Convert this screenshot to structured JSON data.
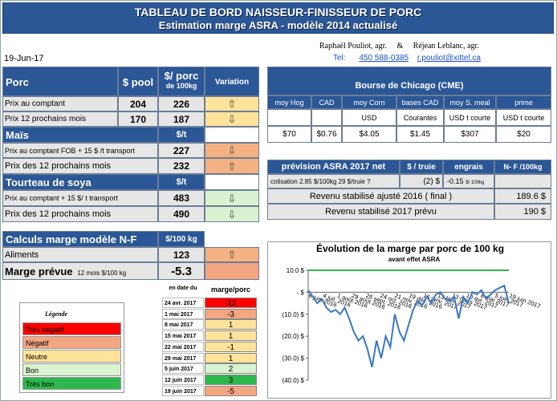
{
  "header": {
    "title": "TABLEAU DE BORD NAISSEUR-FINISSEUR DE PORC",
    "subtitle": "Estimation marge ASRA - modèle 2014 actualisé",
    "date": "19-Jun-17",
    "authors": "Raphaël Pouliot, agr.     &     Réjean Leblanc, agr.",
    "tel_label": "Tel:",
    "tel": "450 588-0385",
    "email": "r.pouliot@xittel.ca"
  },
  "porc": {
    "section": "Porc",
    "col_pool": "$ pool",
    "col_porc": "$/ porc",
    "col_porc2": "de 100kg",
    "col_variation": "Variation",
    "rows": [
      {
        "label": "Prix au comptant",
        "pool": "204",
        "value": "226",
        "trend": "up"
      },
      {
        "label": "Prix 12 prochains mois",
        "pool": "170",
        "value": "187",
        "trend": "down"
      }
    ]
  },
  "mais": {
    "section": "Maïs",
    "unit": "$/t",
    "rows": [
      {
        "label": "Prix au comptant FOB + 15 $ /t transport",
        "value": "227",
        "trend": "down"
      },
      {
        "label": "Prix des 12 prochains mois",
        "value": "232",
        "trend": "up"
      }
    ]
  },
  "soya": {
    "section": "Tourteau de soya",
    "unit": "$/t",
    "rows": [
      {
        "label": "Prix au comptant + 15 $/ t  transport",
        "value": "483",
        "trend": "down"
      },
      {
        "label": "Prix des 12 prochains mois",
        "value": "490",
        "trend": "down"
      }
    ]
  },
  "calculs": {
    "section": "Calculs marge  modèle N-F",
    "unit": "$/100 kg",
    "aliments_label": "Aliments",
    "aliments_value": "123",
    "aliments_trend": "up",
    "marge_label": "Marge prévue",
    "marge_sub": "12 mois  $/100 kg",
    "marge_value": "-5.3"
  },
  "cme": {
    "title": "Bourse de Chicago (CME)",
    "cols": [
      "moy Hog",
      "CAD",
      "moy Corn",
      "bases CAD",
      "moy S. meal",
      "prime"
    ],
    "units": [
      "",
      "",
      "USD",
      "Courantes",
      "USD t courte",
      "USD t courte"
    ],
    "values": [
      "$70",
      "$0.76",
      "$4.05",
      "$1.45",
      "$307",
      "$20"
    ]
  },
  "asra": {
    "title": "prévision ASRA 2017 net",
    "col_truie": "$ / truie",
    "col_engrais": "engrais",
    "col_nf": "N- F /100kg",
    "cotisation_label": "cotisation 2.85 $/100kg  29 $/truie ?",
    "cotisation_truie": "(2) $",
    "cotisation_engrais": "-0.15",
    "cotisation_engrais_unit": "$/ 100kg",
    "rev2016_label": "Revenu stabilisé ajusté 2016 ( final )",
    "rev2016_value": "189.6  $",
    "rev2017_label": "Revenu stabilisé 2017 prévu",
    "rev2017_value": "190  $"
  },
  "legend": {
    "title": "Légende",
    "items": [
      {
        "label": "Très négatif",
        "color": "#ff0000"
      },
      {
        "label": "Négatif",
        "color": "#f4a582"
      },
      {
        "label": "Neutre",
        "color": "#ffe39a"
      },
      {
        "label": "Bon",
        "color": "#d9f2d0"
      },
      {
        "label": "Très bon",
        "color": "#2db84d"
      }
    ]
  },
  "history": {
    "col_date": "en date du",
    "col_marge": "marge/porc",
    "rows": [
      {
        "date": "24 avr. 2017",
        "value": "-12",
        "color": "#ff0000"
      },
      {
        "date": "1 mai 2017",
        "value": "-3",
        "color": "#f4a582"
      },
      {
        "date": "8 mai 2017",
        "value": "1",
        "color": "#ffe39a"
      },
      {
        "date": "15 mai 2017",
        "value": "1",
        "color": "#ffe39a"
      },
      {
        "date": "22 mai 2017",
        "value": "-1",
        "color": "#ffe39a"
      },
      {
        "date": "29 mai 2017",
        "value": "1",
        "color": "#ffe39a"
      },
      {
        "date": "5 juin 2017",
        "value": "2",
        "color": "#d9f2d0"
      },
      {
        "date": "12 juin 2017",
        "value": "3",
        "color": "#2db84d"
      },
      {
        "date": "19 juin 2017",
        "value": "-5",
        "color": "#f4a582"
      }
    ]
  },
  "chart_data": {
    "type": "line",
    "title": "Évolution de la marge par porc de 100 kg",
    "subtitle": "avant effet ASRA",
    "ylim": [
      -40,
      10
    ],
    "yticks": [
      10,
      0,
      -10,
      -20,
      -30,
      -40
    ],
    "ytick_labels": [
      "10.0  $",
      "-   $",
      "(10.0) $",
      "(20.0) $",
      "(30.0) $",
      "(40.0) $"
    ],
    "xtick_labels": [
      "6 juin 2016",
      "4 juil. 2016",
      "1 août 2016",
      "29 août 2016",
      "26 sept. 2016",
      "24 oct. 2016",
      "21 nov. 2016",
      "19 déc. 2016",
      "16 janv. 2017",
      "13 févr. 2017",
      "13 mars 2017",
      "10 avr. 2017",
      "8 mai 2017",
      "5 juin 2017",
      "19 juin 2017"
    ],
    "reference_line": 10,
    "series": [
      {
        "name": "marge",
        "values": [
          1,
          -2,
          -5,
          -3,
          -7,
          -9,
          -8,
          -10,
          -7,
          -12,
          -18,
          -22,
          -20,
          -26,
          -34,
          -22,
          -30,
          -20,
          -25,
          -10,
          -18,
          -22,
          -15,
          -8,
          -4,
          -6,
          -2,
          -5,
          -1,
          0,
          -3,
          -4,
          -2,
          -12,
          -2,
          -5,
          0,
          -1,
          1,
          -3,
          -1,
          1,
          2,
          3,
          -5
        ]
      }
    ]
  }
}
